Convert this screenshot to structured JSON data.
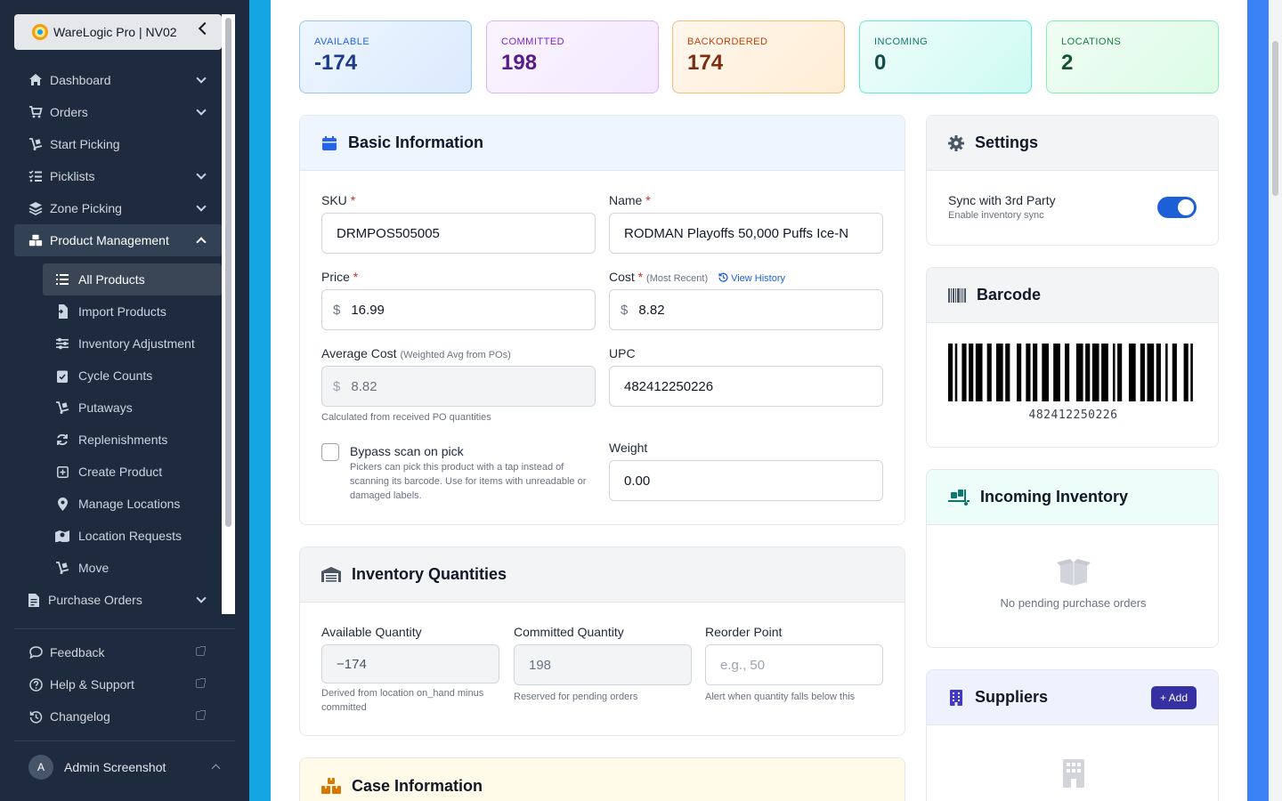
{
  "app": {
    "brand": "WareLogic Pro | NV02"
  },
  "sidebar": {
    "items": [
      {
        "label": "Dashboard",
        "icon": "home-icon"
      },
      {
        "label": "Orders",
        "icon": "cart-icon"
      },
      {
        "label": "Start Picking",
        "icon": "dolly-icon"
      },
      {
        "label": "Picklists",
        "icon": "list-check-icon"
      },
      {
        "label": "Zone Picking",
        "icon": "layers-icon"
      },
      {
        "label": "Product Management",
        "icon": "boxes-icon"
      }
    ],
    "sub_items": [
      {
        "label": "All Products",
        "icon": "list-icon"
      },
      {
        "label": "Import Products",
        "icon": "file-import-icon"
      },
      {
        "label": "Inventory Adjustment",
        "icon": "sliders-icon"
      },
      {
        "label": "Cycle Counts",
        "icon": "clipboard-check-icon"
      },
      {
        "label": "Putaways",
        "icon": "dolly-icon"
      },
      {
        "label": "Replenishments",
        "icon": "refresh-icon"
      },
      {
        "label": "Create Product",
        "icon": "plus-square-icon"
      },
      {
        "label": "Manage Locations",
        "icon": "map-pin-icon"
      },
      {
        "label": "Location Requests",
        "icon": "map-icon"
      },
      {
        "label": "Move",
        "icon": "dolly-icon"
      }
    ],
    "purchase_orders": "Purchase Orders",
    "footer": [
      {
        "label": "Feedback",
        "icon": "comment-icon"
      },
      {
        "label": "Help & Support",
        "icon": "question-circle-icon"
      },
      {
        "label": "Changelog",
        "icon": "history-icon"
      }
    ],
    "user": {
      "initial": "A",
      "name": "Admin Screenshot"
    }
  },
  "stats": [
    {
      "label": "AVAILABLE",
      "value": "-174"
    },
    {
      "label": "COMMITTED",
      "value": "198"
    },
    {
      "label": "BACKORDERED",
      "value": "174"
    },
    {
      "label": "INCOMING",
      "value": "0"
    },
    {
      "label": "LOCATIONS",
      "value": "2"
    }
  ],
  "basic": {
    "title": "Basic Information",
    "sku_label": "SKU",
    "sku": "DRMPOS505005",
    "name_label": "Name",
    "name": "RODMAN Playoffs 50,000 Puffs Ice-N",
    "price_label": "Price",
    "price": "16.99",
    "cost_label": "Cost",
    "cost_hint": "(Most Recent)",
    "view_history": "View History",
    "cost": "8.82",
    "avg_label": "Average Cost",
    "avg_hint": "(Weighted Avg from POs)",
    "avg": "8.82",
    "avg_help": "Calculated from received PO quantities",
    "upc_label": "UPC",
    "upc": "482412250226",
    "bypass_label": "Bypass scan on pick",
    "bypass_help": "Pickers can pick this product with a tap instead of scanning its barcode. Use for items with unreadable or damaged labels.",
    "weight_label": "Weight",
    "weight": "0.00",
    "currency": "$",
    "required_mark": "*"
  },
  "inventory": {
    "title": "Inventory Quantities",
    "available_label": "Available Quantity",
    "available": "−174",
    "available_help": "Derived from location on_hand minus committed",
    "committed_label": "Committed Quantity",
    "committed": "198",
    "committed_help": "Reserved for pending orders",
    "reorder_label": "Reorder Point",
    "reorder_placeholder": "e.g., 50",
    "reorder_help": "Alert when quantity falls below this"
  },
  "case_info": {
    "title": "Case Information"
  },
  "settings": {
    "title": "Settings",
    "sync_label": "Sync with 3rd Party",
    "sync_help": "Enable inventory sync",
    "sync_on": true
  },
  "barcode": {
    "title": "Barcode",
    "value": "482412250226"
  },
  "incoming": {
    "title": "Incoming Inventory",
    "empty": "No pending purchase orders"
  },
  "suppliers": {
    "title": "Suppliers",
    "add": "+ Add"
  }
}
